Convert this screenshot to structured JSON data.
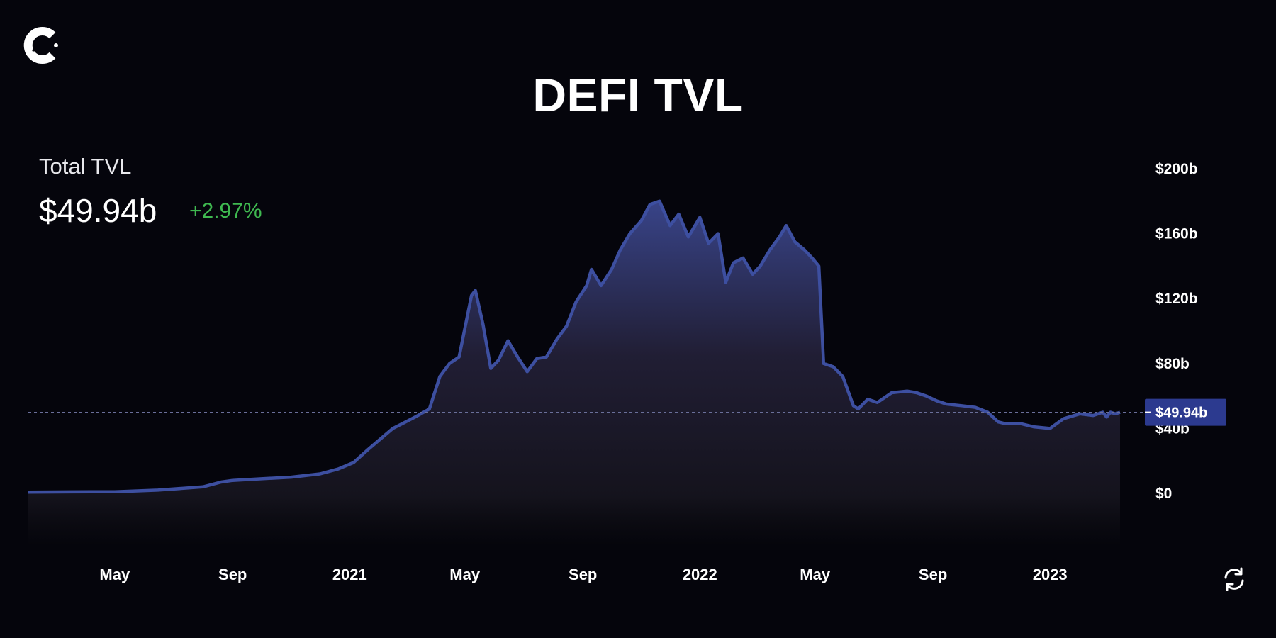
{
  "brand": {
    "logo_icon": "coinstats-logo-icon"
  },
  "header": {
    "title": "DEFI TVL"
  },
  "summary": {
    "label": "Total TVL",
    "value": "$49.94b",
    "change": "+2.97%",
    "change_color": "#3fb950"
  },
  "controls": {
    "refresh_icon": "refresh-icon"
  },
  "colors": {
    "line": "#3d4fa0",
    "area_top": "#3b478f",
    "area_bottom": "#100f14",
    "background": "#05050c",
    "current_badge": "#2c3a8f"
  },
  "chart_data": {
    "type": "area",
    "title": "DEFI TVL",
    "xlabel": "",
    "ylabel": "",
    "y_unit": "billion USD",
    "ylim": [
      0,
      200
    ],
    "yticks": [
      {
        "value": 0,
        "label": "$0"
      },
      {
        "value": 40,
        "label": "$40b"
      },
      {
        "value": 80,
        "label": "$80b"
      },
      {
        "value": 120,
        "label": "$120b"
      },
      {
        "value": 160,
        "label": "$160b"
      },
      {
        "value": 200,
        "label": "$200b"
      }
    ],
    "xlim": [
      "2020-02-01",
      "2023-03-15"
    ],
    "xticks": [
      {
        "date": "2020-05-01",
        "label": "May"
      },
      {
        "date": "2020-09-01",
        "label": "Sep"
      },
      {
        "date": "2021-01-01",
        "label": "2021"
      },
      {
        "date": "2021-05-01",
        "label": "May"
      },
      {
        "date": "2021-09-01",
        "label": "Sep"
      },
      {
        "date": "2022-01-01",
        "label": "2022"
      },
      {
        "date": "2022-05-01",
        "label": "May"
      },
      {
        "date": "2022-09-01",
        "label": "Sep"
      },
      {
        "date": "2023-01-01",
        "label": "2023"
      }
    ],
    "current": {
      "value": 49.94,
      "label": "$49.94b"
    },
    "grid": false,
    "series": [
      {
        "x": [
          "2020-02-01",
          "2020-03-15",
          "2020-05-01",
          "2020-06-15",
          "2020-08-01",
          "2020-08-20",
          "2020-09-01",
          "2020-10-01",
          "2020-11-01",
          "2020-12-01",
          "2020-12-20",
          "2021-01-05",
          "2021-01-20",
          "2021-02-01",
          "2021-02-15",
          "2021-02-25",
          "2021-03-10",
          "2021-03-25",
          "2021-04-05",
          "2021-04-15",
          "2021-04-25",
          "2021-05-08",
          "2021-05-12",
          "2021-05-20",
          "2021-05-28",
          "2021-06-05",
          "2021-06-15",
          "2021-06-25",
          "2021-07-05",
          "2021-07-15",
          "2021-07-25",
          "2021-08-05",
          "2021-08-15",
          "2021-08-25",
          "2021-09-05",
          "2021-09-10",
          "2021-09-20",
          "2021-10-01",
          "2021-10-10",
          "2021-10-20",
          "2021-11-01",
          "2021-11-10",
          "2021-11-20",
          "2021-12-01",
          "2021-12-10",
          "2021-12-20",
          "2022-01-01",
          "2022-01-10",
          "2022-01-20",
          "2022-01-28",
          "2022-02-05",
          "2022-02-15",
          "2022-02-25",
          "2022-03-05",
          "2022-03-15",
          "2022-03-25",
          "2022-04-01",
          "2022-04-10",
          "2022-04-20",
          "2022-04-28",
          "2022-05-05",
          "2022-05-10",
          "2022-05-20",
          "2022-05-30",
          "2022-06-10",
          "2022-06-15",
          "2022-06-25",
          "2022-07-05",
          "2022-07-20",
          "2022-08-05",
          "2022-08-15",
          "2022-08-25",
          "2022-09-05",
          "2022-09-15",
          "2022-10-01",
          "2022-10-15",
          "2022-10-28",
          "2022-11-08",
          "2022-11-15",
          "2022-12-01",
          "2022-12-15",
          "2023-01-01",
          "2023-01-15",
          "2023-02-01",
          "2023-02-15",
          "2023-02-25",
          "2023-03-01",
          "2023-03-05",
          "2023-03-10",
          "2023-03-15"
        ],
        "values": [
          0.8,
          0.9,
          1.0,
          2.0,
          4.0,
          7.0,
          8.0,
          9.0,
          10.0,
          12.0,
          15.0,
          19.0,
          27.0,
          33.0,
          40.0,
          43.0,
          47.0,
          52.0,
          72.0,
          80.0,
          84.0,
          122.0,
          125.0,
          104.0,
          77.0,
          82.0,
          94.0,
          84.0,
          75.0,
          83.0,
          84.0,
          95.0,
          103.0,
          118.0,
          128.0,
          138.0,
          128.0,
          138.0,
          150.0,
          160.0,
          168.0,
          178.0,
          180.0,
          165.0,
          172.0,
          158.0,
          170.0,
          154.0,
          160.0,
          130.0,
          142.0,
          145.0,
          135.0,
          140.0,
          150.0,
          158.0,
          165.0,
          155.0,
          150.0,
          145.0,
          140.0,
          80.0,
          78.0,
          72.0,
          54.0,
          52.0,
          58.0,
          56.0,
          62.0,
          63.0,
          62.0,
          60.0,
          57.0,
          55.0,
          54.0,
          53.0,
          50.0,
          44.0,
          43.0,
          43.0,
          41.0,
          40.0,
          46.0,
          49.0,
          48.0,
          50.0,
          47.0,
          50.0,
          49.0,
          49.94
        ]
      }
    ]
  }
}
